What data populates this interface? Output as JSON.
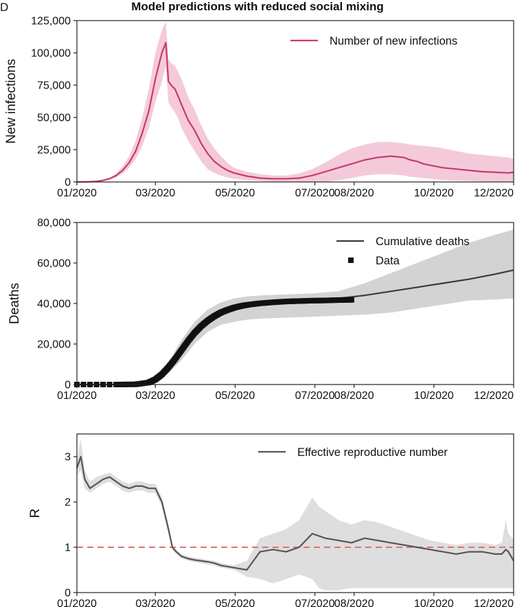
{
  "panel_letter": "D",
  "figure_title": "Model predictions with reduced social mixing",
  "colors": {
    "infections": "#c83a6a",
    "infections_band": "#f0b8cf",
    "deaths": "#3a3a3a",
    "deaths_band": "#d3d3d3",
    "r_line": "#555555",
    "r_band": "#dedede",
    "r_ref": "#e07070",
    "axis": "#222222"
  },
  "chart_data": [
    {
      "type": "line",
      "ylabel": "New infections",
      "xticks": [
        "01/2020",
        "03/2020",
        "05/2020",
        "07/2020",
        "08/2020",
        "10/2020",
        "12/2020"
      ],
      "yticks": [
        "0",
        "25,000",
        "50,000",
        "75,000",
        "100,000",
        "125,000"
      ],
      "ylim": [
        0,
        125000
      ],
      "legend": {
        "position": "top-right",
        "entries": [
          "Number of new infections"
        ]
      },
      "series": [
        {
          "name": "Number of new infections",
          "color": "#c83a6a",
          "x": [
            0,
            5,
            10,
            15,
            20,
            25,
            30,
            35,
            40,
            45,
            50,
            55,
            60,
            65,
            68,
            70,
            72,
            75,
            78,
            80,
            85,
            90,
            95,
            100,
            105,
            110,
            115,
            120,
            130,
            140,
            150,
            160,
            170,
            180,
            190,
            200,
            210,
            220,
            230,
            240,
            250,
            255,
            260,
            265,
            270,
            275,
            280,
            290,
            300,
            310,
            320,
            330,
            334
          ],
          "y": [
            0,
            80,
            200,
            500,
            1200,
            2500,
            5000,
            9000,
            15000,
            24000,
            38000,
            55000,
            80000,
            100000,
            108000,
            78000,
            75000,
            72000,
            65000,
            60000,
            48000,
            40000,
            30000,
            22000,
            16000,
            12000,
            9000,
            7000,
            4500,
            3000,
            2500,
            2500,
            3000,
            5000,
            8000,
            11000,
            14000,
            17000,
            19000,
            20000,
            19000,
            17000,
            16000,
            14000,
            13000,
            12000,
            11000,
            10000,
            9000,
            8000,
            7500,
            7000,
            7500
          ],
          "lower": [
            0,
            50,
            120,
            300,
            800,
            1800,
            3500,
            6500,
            11000,
            18000,
            28000,
            42000,
            62000,
            78000,
            90000,
            62000,
            58000,
            54000,
            48000,
            42000,
            32000,
            24000,
            16000,
            10000,
            7000,
            5000,
            3500,
            2500,
            1500,
            800,
            300,
            0,
            0,
            0,
            0,
            1500,
            3000,
            5000,
            6000,
            6000,
            5000,
            4000,
            3500,
            3000,
            2500,
            2000,
            1500,
            1000,
            800,
            500,
            300,
            200,
            100
          ],
          "upper": [
            0,
            120,
            300,
            700,
            1700,
            3300,
            6500,
            12000,
            20000,
            32000,
            50000,
            72000,
            100000,
            118000,
            124000,
            95000,
            92000,
            90000,
            84000,
            80000,
            66000,
            56000,
            44000,
            34000,
            26000,
            20000,
            15000,
            11000,
            8000,
            6000,
            5000,
            5000,
            6500,
            10000,
            15000,
            21000,
            26000,
            29000,
            31000,
            31000,
            30000,
            29000,
            28500,
            28000,
            27500,
            27000,
            26000,
            24000,
            22000,
            21000,
            20000,
            19000,
            18000
          ]
        }
      ]
    },
    {
      "type": "line",
      "ylabel": "Deaths",
      "xticks": [
        "01/2020",
        "03/2020",
        "05/2020",
        "07/2020",
        "08/2020",
        "10/2020",
        "12/2020"
      ],
      "yticks": [
        "0",
        "20,000",
        "40,000",
        "60,000",
        "80,000"
      ],
      "ylim": [
        0,
        80000
      ],
      "legend": {
        "position": "top-right",
        "entries": [
          "Cumulative deaths",
          "Data"
        ]
      },
      "series": [
        {
          "name": "Cumulative deaths",
          "color": "#3a3a3a",
          "x": [
            0,
            30,
            50,
            60,
            70,
            80,
            90,
            100,
            110,
            120,
            130,
            140,
            160,
            180,
            200,
            220,
            240,
            260,
            280,
            300,
            320,
            334
          ],
          "y": [
            0,
            50,
            500,
            2500,
            8000,
            17000,
            26000,
            32000,
            36000,
            38500,
            39800,
            40500,
            41200,
            41800,
            42500,
            44000,
            46000,
            48000,
            50000,
            52000,
            54500,
            56500
          ],
          "lower": [
            0,
            30,
            300,
            1500,
            5500,
            12000,
            20000,
            26000,
            29500,
            31000,
            32000,
            32500,
            33000,
            33500,
            34000,
            34500,
            35500,
            37500,
            39500,
            41500,
            42000,
            42500
          ],
          "upper": [
            0,
            80,
            800,
            3500,
            11000,
            22000,
            31000,
            37000,
            40500,
            42500,
            43500,
            44000,
            44500,
            45000,
            46000,
            50000,
            55000,
            60000,
            65000,
            70000,
            74000,
            76500
          ]
        },
        {
          "name": "Data",
          "color": "#111111",
          "x": [
            0,
            30,
            45,
            55,
            60,
            65,
            70,
            75,
            80,
            85,
            90,
            95,
            100,
            105,
            110,
            115,
            120,
            125,
            130,
            140,
            150,
            160,
            170,
            180,
            190,
            200,
            210
          ],
          "y": [
            0,
            0,
            100,
            1000,
            2500,
            5000,
            8500,
            12500,
            17000,
            21500,
            25500,
            28800,
            31500,
            33700,
            35500,
            36800,
            37900,
            38700,
            39300,
            40100,
            40600,
            41000,
            41200,
            41400,
            41500,
            41700,
            41800
          ]
        }
      ]
    },
    {
      "type": "line",
      "ylabel": "R",
      "xticks": [
        "01/2020",
        "03/2020",
        "05/2020",
        "07/2020",
        "08/2020",
        "10/2020",
        "12/2020"
      ],
      "yticks": [
        "0",
        "1",
        "2",
        "3"
      ],
      "ylim": [
        0,
        3.5
      ],
      "reference_line": 1,
      "legend": {
        "position": "top-right",
        "entries": [
          "Effective reproductive number"
        ]
      },
      "series": [
        {
          "name": "Effective reproductive number",
          "color": "#555555",
          "x": [
            0,
            3,
            6,
            10,
            15,
            20,
            25,
            30,
            35,
            40,
            45,
            50,
            55,
            60,
            65,
            70,
            73,
            76,
            80,
            85,
            90,
            95,
            100,
            105,
            110,
            120,
            130,
            140,
            150,
            160,
            170,
            180,
            185,
            190,
            200,
            210,
            220,
            230,
            240,
            250,
            260,
            270,
            280,
            290,
            300,
            310,
            320,
            325,
            328,
            330,
            333,
            334
          ],
          "y": [
            2.75,
            3.0,
            2.5,
            2.3,
            2.4,
            2.5,
            2.55,
            2.45,
            2.35,
            2.3,
            2.35,
            2.35,
            2.3,
            2.3,
            2.0,
            1.4,
            1.0,
            0.9,
            0.8,
            0.75,
            0.72,
            0.7,
            0.68,
            0.65,
            0.6,
            0.55,
            0.5,
            0.9,
            0.95,
            0.9,
            1.0,
            1.3,
            1.25,
            1.2,
            1.15,
            1.1,
            1.2,
            1.15,
            1.1,
            1.05,
            1.0,
            0.95,
            0.9,
            0.85,
            0.9,
            0.9,
            0.85,
            0.85,
            0.95,
            0.9,
            0.75,
            0.7
          ],
          "lower": [
            2.6,
            2.7,
            2.3,
            2.2,
            2.3,
            2.4,
            2.45,
            2.35,
            2.25,
            2.2,
            2.25,
            2.25,
            2.2,
            2.2,
            1.9,
            1.3,
            0.95,
            0.85,
            0.75,
            0.7,
            0.67,
            0.65,
            0.62,
            0.6,
            0.55,
            0.5,
            0.35,
            0.3,
            0.2,
            0.3,
            0.4,
            0.3,
            0.1,
            0.05,
            0.05,
            0.1,
            0.1,
            0.1,
            0.1,
            0.1,
            0.1,
            0.1,
            0.1,
            0.1,
            0.1,
            0.1,
            0.1,
            0.1,
            0.1,
            0.1,
            0.1,
            0.1
          ],
          "upper": [
            2.9,
            3.4,
            2.7,
            2.45,
            2.55,
            2.6,
            2.65,
            2.55,
            2.45,
            2.4,
            2.45,
            2.45,
            2.4,
            2.4,
            2.1,
            1.5,
            1.05,
            0.95,
            0.85,
            0.8,
            0.77,
            0.75,
            0.72,
            0.7,
            0.65,
            0.6,
            0.7,
            1.2,
            1.3,
            1.4,
            1.6,
            2.1,
            1.9,
            1.8,
            1.6,
            1.5,
            1.6,
            1.55,
            1.45,
            1.35,
            1.25,
            1.15,
            1.1,
            1.05,
            1.1,
            1.1,
            1.05,
            1.1,
            1.6,
            1.3,
            1.2,
            1.15
          ]
        }
      ]
    }
  ]
}
